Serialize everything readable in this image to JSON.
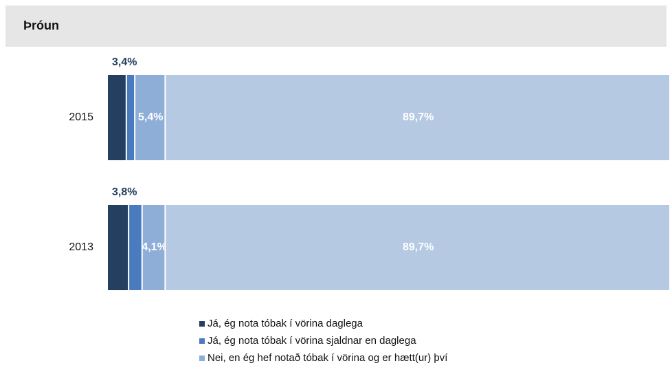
{
  "chart_data": {
    "type": "stacked-bar-horizontal",
    "title": "Þróun",
    "categories": [
      "2015",
      "2013"
    ],
    "xlim": [
      0,
      100
    ],
    "series": [
      {
        "name": "Já, ég nota tóbak í vörina daglega",
        "color": "#243f60",
        "values": [
          3.4,
          3.8
        ],
        "value_labels": [
          "3,4%",
          "3,8%"
        ]
      },
      {
        "name": "Já, ég nota tóbak í vörina sjaldnar en daglega",
        "color": "#4a7bbf",
        "values": [
          1.5,
          2.4
        ],
        "value_labels": [
          null,
          null
        ]
      },
      {
        "name": "Nei, en ég hef notað tóbak í vörina og er hætt(ur) því",
        "color": "#8eaed8",
        "values": [
          5.4,
          4.1
        ],
        "value_labels": [
          "5,4%",
          "4,1%"
        ]
      },
      {
        "name": null,
        "color": "#b5c9e3",
        "values": [
          89.7,
          89.7
        ],
        "value_labels": [
          "89,7%",
          "89,7%"
        ]
      }
    ]
  }
}
